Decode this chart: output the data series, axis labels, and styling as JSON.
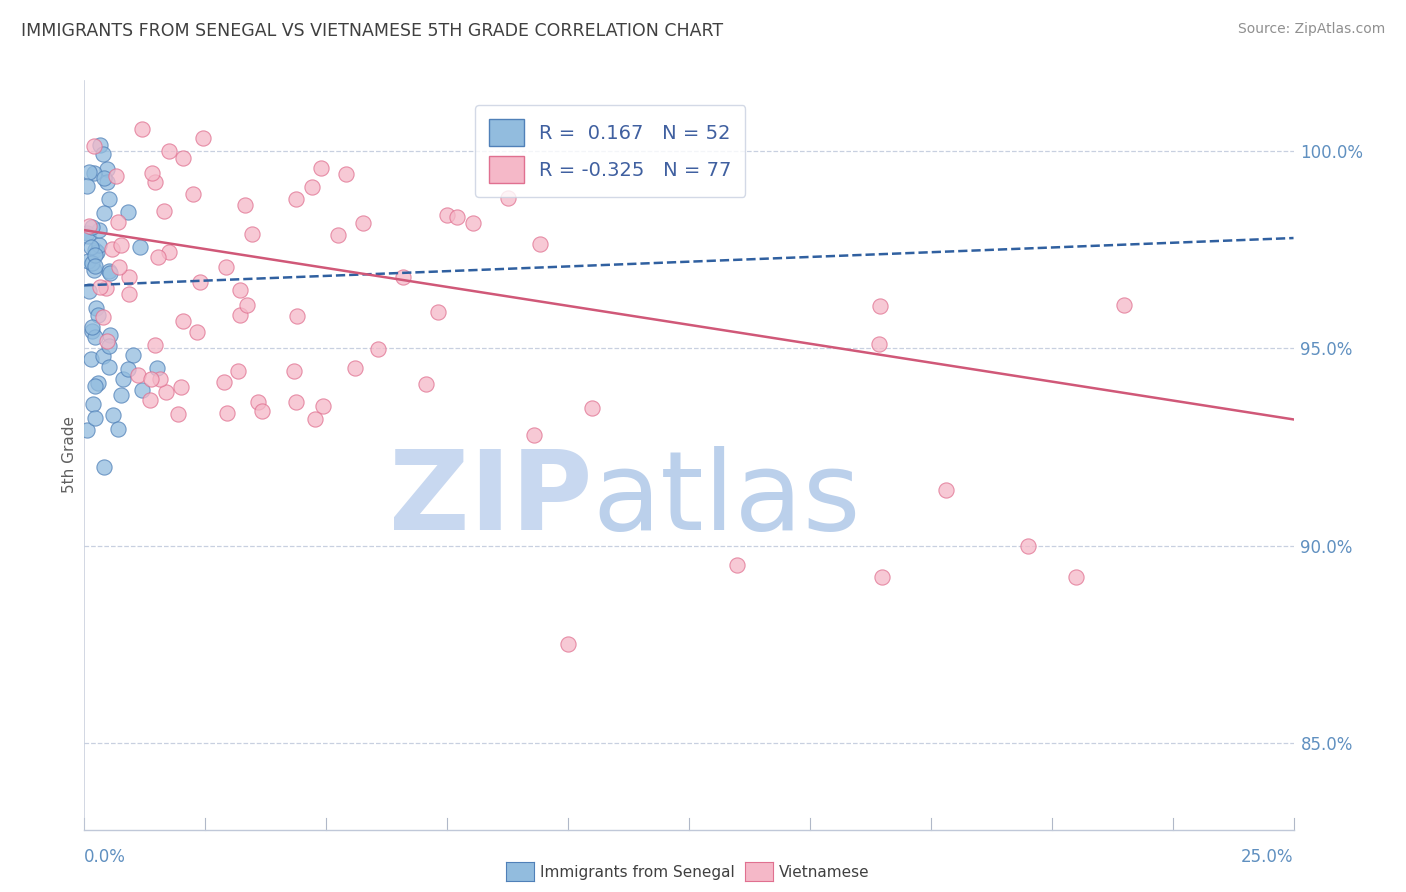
{
  "title": "IMMIGRANTS FROM SENEGAL VS VIETNAMESE 5TH GRADE CORRELATION CHART",
  "source_text": "Source: ZipAtlas.com",
  "ylabel": "5th Grade",
  "ylabel_right_ticks": [
    "85.0%",
    "90.0%",
    "95.0%",
    "100.0%"
  ],
  "ylabel_right_values": [
    0.85,
    0.9,
    0.95,
    1.0
  ],
  "xmin": 0.0,
  "xmax": 0.25,
  "ymin": 0.828,
  "ymax": 1.018,
  "R_blue": 0.167,
  "N_blue": 52,
  "R_pink": -0.325,
  "N_pink": 77,
  "legend_label_blue": "Immigrants from Senegal",
  "legend_label_pink": "Vietnamese",
  "scatter_blue_color": "#92bcde",
  "scatter_pink_color": "#f5b8c8",
  "scatter_blue_edge": "#5080b8",
  "scatter_pink_edge": "#e07090",
  "trendline_blue_color": "#3060a0",
  "trendline_pink_color": "#d05878",
  "watermark_zip_color": "#c8d8f0",
  "watermark_atlas_color": "#b0c8e8",
  "title_color": "#404040",
  "axis_color": "#6090c0",
  "background_color": "#ffffff",
  "grid_color": "#c8d0e0",
  "blue_trendline_x": [
    0.0,
    0.25
  ],
  "blue_trendline_y": [
    0.966,
    0.978
  ],
  "pink_trendline_x": [
    0.0,
    0.25
  ],
  "pink_trendline_y": [
    0.98,
    0.932
  ]
}
